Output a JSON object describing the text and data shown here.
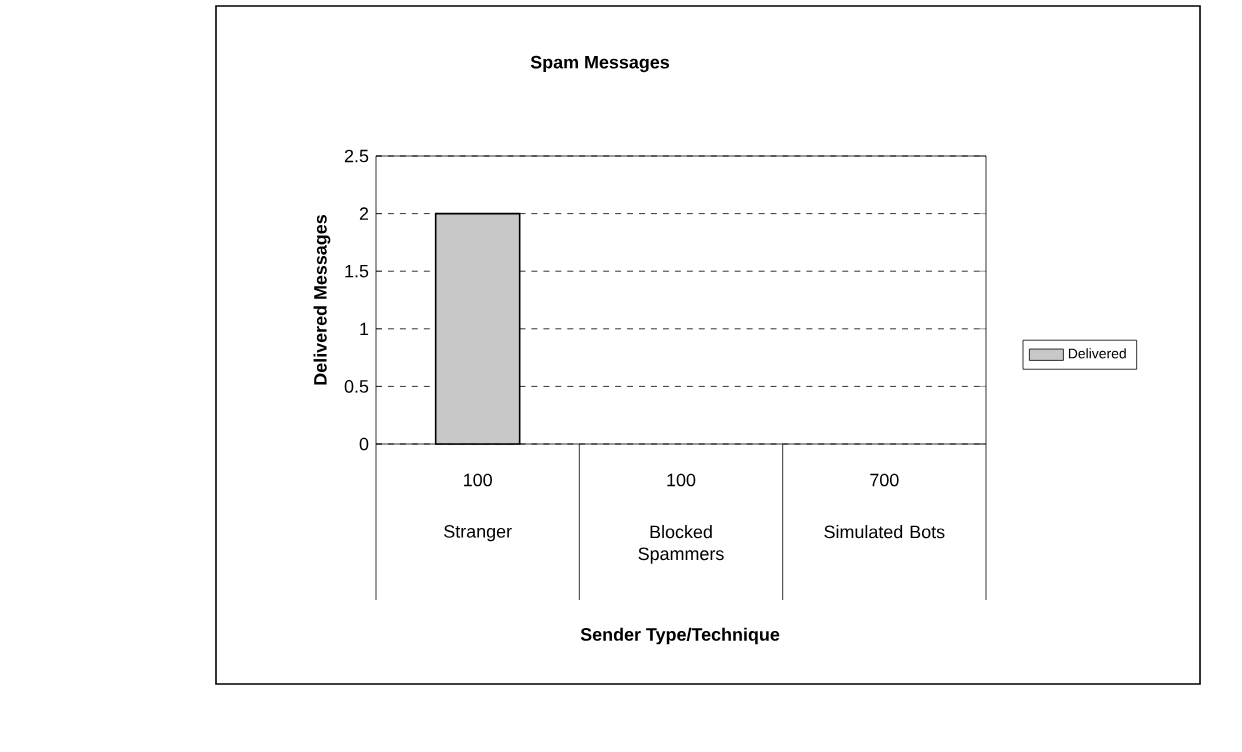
{
  "chart_data": {
    "type": "bar",
    "title": "Spam Messages",
    "xlabel": "Sender Type/Technique",
    "ylabel": "Delivered Messages",
    "categories": [
      "Stranger",
      "Blocked Spammers",
      "Simulated Bots"
    ],
    "series": [
      {
        "name": "Delivered",
        "color": "#c8c8c8",
        "values": [
          2,
          0,
          0
        ]
      }
    ],
    "ylim": [
      0,
      2.5
    ],
    "yticks": [
      0,
      0.5,
      1,
      1.5,
      2,
      2.5
    ],
    "grid": "y",
    "legend": "right",
    "annotations": [
      "100",
      "100",
      "700"
    ]
  }
}
